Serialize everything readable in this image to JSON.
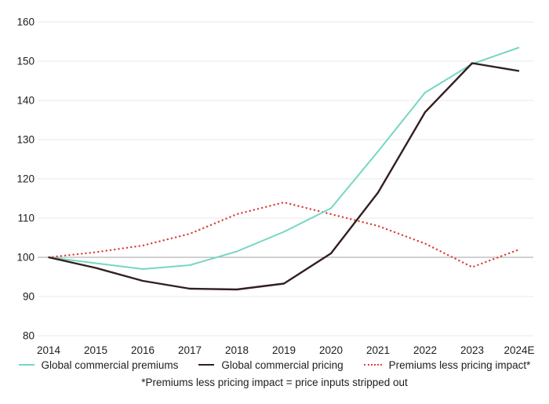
{
  "chart_data": {
    "type": "line",
    "title": "",
    "categories": [
      "2014",
      "2015",
      "2016",
      "2017",
      "2018",
      "2019",
      "2020",
      "2021",
      "2022",
      "2023",
      "2024E"
    ],
    "ylim": [
      80,
      160
    ],
    "yticks": [
      80,
      90,
      100,
      110,
      120,
      130,
      140,
      150,
      160
    ],
    "baseline": 100,
    "grid": "horizontal",
    "legend_position": "bottom",
    "grid_color": "#e8e8e8",
    "baseline_color": "#a3a3a3",
    "text_color": "#1d1d1d",
    "series": [
      {
        "id": "premiums",
        "name": "Global commercial premiums",
        "color": "#76d6c4",
        "style": "solid",
        "width": 2,
        "z": 1,
        "values": [
          100,
          98.5,
          97,
          98,
          101.5,
          106.5,
          112.5,
          127,
          142,
          149.3,
          153.5
        ]
      },
      {
        "id": "pricing",
        "name": "Global commercial pricing",
        "color": "#331f21",
        "style": "solid",
        "width": 2.4,
        "z": 2,
        "values": [
          100,
          97.3,
          94,
          92,
          91.8,
          93.3,
          101,
          116.5,
          137,
          149.5,
          147.5
        ]
      },
      {
        "id": "pricing-impact",
        "name": "Premiums less pricing impact*",
        "color": "#d9423b",
        "style": "dotted",
        "width": 2.4,
        "z": 0,
        "values": [
          100,
          101.3,
          103,
          106,
          111,
          114,
          111,
          108,
          103.5,
          97.5,
          102
        ]
      }
    ],
    "footnote": "*Premiums less pricing impact = price inputs stripped out"
  }
}
